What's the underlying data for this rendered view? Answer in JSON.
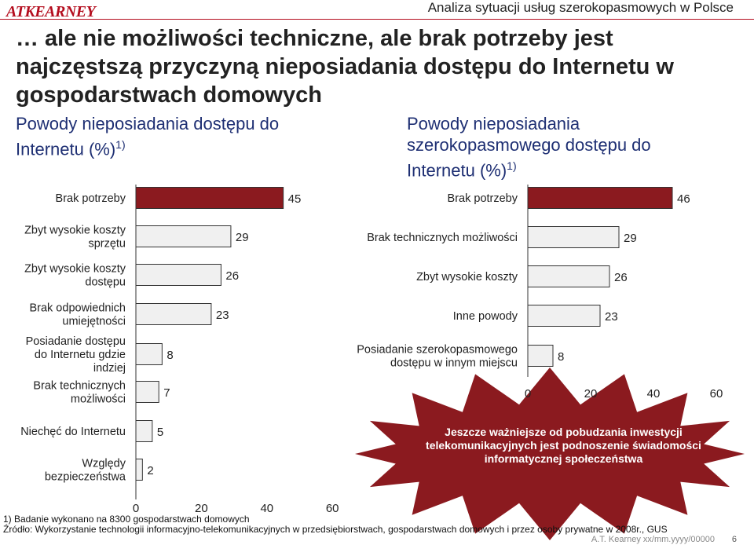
{
  "header": {
    "logo": "ATKEARNEY",
    "title": "Analiza sytuacji usług szerokopasmowych w Polsce"
  },
  "main_title": "… ale nie możliwości techniczne, ale brak potrzeby jest najczęstszą przyczyną nieposiadania dostępu do Internetu w gospodarstwach domowych",
  "left_chart_title": "Powody nieposiadania dostępu do Internetu (%)",
  "left_chart_title_sup": "1)",
  "right_chart_title": "Powody nieposiadania szerokopasmowego dostępu do Internetu (%)",
  "right_chart_title_sup": "1)",
  "callout": "Jeszcze ważniejsze od pobudzania inwestycji telekomunikacyjnych jest podnoszenie świadomości informatycznej społeczeństwa",
  "footnotes": {
    "note1": "1) Badanie wykonano na 8300 gospodarstwach domowych",
    "source": "Źródło: Wykorzystanie technologii informacyjno-telekomunikacyjnych w przedsiębiorstwach, gospodarstwach domowych i przez osoby prywatne w 2008r., GUS",
    "ref": "A.T. Kearney xx/mm.yyyy/00000",
    "page": "6"
  },
  "colors": {
    "highlight_bar": "#8b1a1f",
    "plain_bar": "#f0f0f0",
    "bar_stroke": "#333333",
    "title_blue": "#1e2f73",
    "burst": "#8b1a1f"
  },
  "chart_data": [
    {
      "type": "bar",
      "orientation": "horizontal",
      "title": "Powody nieposiadania dostępu do Internetu (%)",
      "categories": [
        "Brak potrzeby",
        "Zbyt wysokie koszty sprzętu",
        "Zbyt wysokie koszty dostępu",
        "Brak odpowiednich umiejętności",
        "Posiadanie dostępu do Internetu gdzie indziej",
        "Brak technicznych możliwości",
        "Niechęć do Internetu",
        "Względy bezpieczeństwa"
      ],
      "values": [
        45,
        29,
        26,
        23,
        8,
        7,
        5,
        2
      ],
      "highlight": [
        true,
        false,
        false,
        false,
        false,
        false,
        false,
        false
      ],
      "xlim": [
        0,
        60
      ],
      "xticks": [
        0,
        20,
        40,
        60
      ]
    },
    {
      "type": "bar",
      "orientation": "horizontal",
      "title": "Powody nieposiadania szerokopasmowego dostępu do Internetu (%)",
      "categories": [
        "Brak potrzeby",
        "Brak technicznych możliwości",
        "Zbyt wysokie koszty",
        "Inne powody",
        "Posiadanie szerokopasmowego dostępu w innym miejscu"
      ],
      "values": [
        46,
        29,
        26,
        23,
        8
      ],
      "highlight": [
        true,
        false,
        false,
        false,
        false
      ],
      "xlim": [
        0,
        60
      ],
      "xticks": [
        0,
        20,
        40,
        60
      ]
    }
  ]
}
